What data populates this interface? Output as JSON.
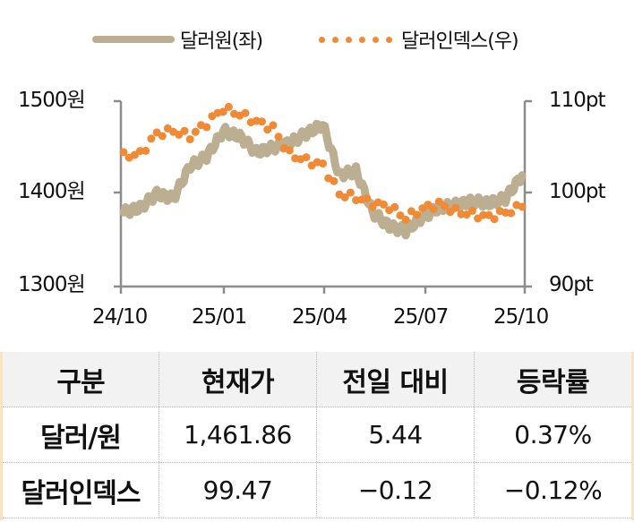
{
  "legend": {
    "series1_label": "달러원(좌)",
    "series2_label": "달러인덱스(우)"
  },
  "axes": {
    "left_ticks": [
      "1500원",
      "1400원",
      "1300원"
    ],
    "right_ticks": [
      "110pt",
      "100pt",
      "90pt"
    ],
    "x_ticks": [
      "24/10",
      "25/01",
      "25/04",
      "25/07",
      "25/10"
    ]
  },
  "colors": {
    "usdkrw_line": "#bcae90",
    "dxy_dots": "#f08a34",
    "axis": "#8c8c8c",
    "table_header_bg": "#f2f2f2",
    "table_side_border": "#fbe3bd"
  },
  "chart_data": {
    "type": "line",
    "title": "",
    "xlabel": "",
    "ylabel": "",
    "x_range": [
      "24/10",
      "25/10"
    ],
    "legend_position": "top",
    "grid": false,
    "y_left": {
      "label": "달러원(좌)",
      "ylim": [
        1300,
        1500
      ],
      "unit": "원"
    },
    "y_right": {
      "label": "달러인덱스(우)",
      "ylim": [
        90,
        110
      ],
      "unit": "pt"
    },
    "x": [
      "24/10",
      "24/10b",
      "24/11",
      "24/11b",
      "24/12",
      "24/12b",
      "25/01",
      "25/01b",
      "25/02",
      "25/02b",
      "25/03",
      "25/03b",
      "25/04",
      "25/04b",
      "25/05",
      "25/05b",
      "25/06",
      "25/06b",
      "25/07",
      "25/07b",
      "25/08",
      "25/08b",
      "25/09",
      "25/09b",
      "25/10"
    ],
    "series": [
      {
        "name": "달러원(좌)",
        "style": "thick line",
        "axis": "left",
        "values": [
          1380,
          1385,
          1400,
          1395,
          1430,
          1440,
          1468,
          1462,
          1445,
          1450,
          1455,
          1465,
          1475,
          1420,
          1425,
          1380,
          1365,
          1360,
          1375,
          1385,
          1388,
          1392,
          1390,
          1395,
          1420
        ]
      },
      {
        "name": "달러인덱스(우)",
        "style": "dotted",
        "axis": "right",
        "values": [
          104.1,
          104.3,
          106.5,
          106.8,
          106.2,
          107.6,
          109.2,
          108.6,
          107.8,
          107.1,
          104.3,
          103.6,
          103.1,
          100.0,
          99.6,
          99.0,
          98.6,
          97.4,
          98.4,
          98.9,
          98.1,
          97.8,
          97.5,
          98.0,
          98.6
        ]
      }
    ]
  },
  "table": {
    "headers": [
      "구분",
      "현재가",
      "전일 대비",
      "등락률"
    ],
    "rows": [
      [
        "달러/원",
        "1,461.86",
        "5.44",
        "0.37%"
      ],
      [
        "달러인덱스",
        "99.47",
        "−0.12",
        "−0.12%"
      ]
    ]
  }
}
